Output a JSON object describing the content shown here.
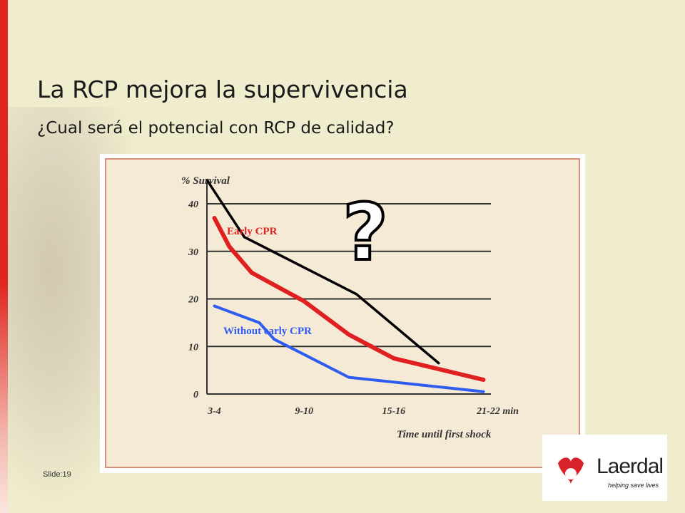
{
  "slide": {
    "title": "La RCP mejora la supervivencia",
    "subtitle": "¿Cual será el potencial con RCP de calidad?",
    "slide_number": "Slide:19"
  },
  "logo": {
    "name": "Laerdal",
    "tagline": "helping save lives"
  },
  "chart_data": {
    "type": "line",
    "ylabel": "% Survival",
    "xlabel": "Time until first shock",
    "categories": [
      "3-4",
      "9-10",
      "15-16",
      "21-22 min"
    ],
    "ylim": [
      0,
      40
    ],
    "yticks": [
      "0",
      "10",
      "20",
      "30",
      "40"
    ],
    "grid": true,
    "series": [
      {
        "name": "Early CPR",
        "color": "#e02020",
        "points": [
          [
            3.5,
            37
          ],
          [
            4.5,
            31
          ],
          [
            6,
            25.5
          ],
          [
            9.5,
            19.5
          ],
          [
            12.5,
            12.5
          ],
          [
            15.5,
            7.5
          ],
          [
            21.5,
            3
          ]
        ]
      },
      {
        "name": "Without early CPR",
        "color": "#2f5cf0",
        "points": [
          [
            3.5,
            18.5
          ],
          [
            6.5,
            15
          ],
          [
            7.5,
            11.5
          ],
          [
            12.5,
            3.5
          ],
          [
            21.5,
            0.5
          ]
        ]
      },
      {
        "color": "#000000",
        "points": [
          [
            3,
            45
          ],
          [
            5.5,
            33
          ],
          [
            13,
            21
          ],
          [
            18.5,
            6.5
          ]
        ]
      }
    ],
    "annotation": "?"
  }
}
